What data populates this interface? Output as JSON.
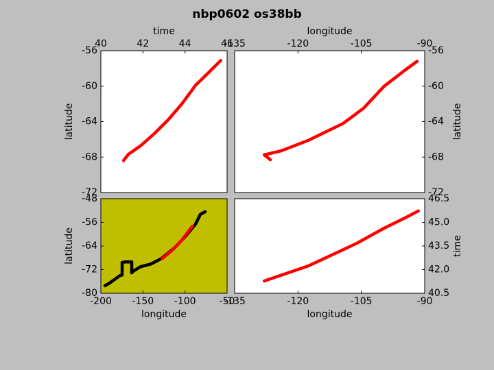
{
  "title": "nbp0602 os38bb",
  "chart_data": [
    {
      "type": "line",
      "xlabel": "time",
      "ylabel": "latitude",
      "x_axis": "top",
      "y_axis": "left",
      "background": "#ffffff",
      "xlim": [
        40,
        46
      ],
      "xticks": [
        40,
        42,
        44,
        46
      ],
      "ylim": [
        -72,
        -56
      ],
      "yticks": [
        -56,
        -60,
        -64,
        -68,
        -72
      ],
      "series": [
        {
          "color": "#ff0000",
          "x": [
            41.08,
            41.3,
            41.9,
            42.54,
            43.2,
            43.85,
            44.5,
            45.15,
            45.7
          ],
          "values": [
            -68.4,
            -67.7,
            -66.7,
            -65.35,
            -63.8,
            -62.0,
            -59.9,
            -58.4,
            -57.1
          ]
        }
      ]
    },
    {
      "type": "line",
      "xlabel": "longitude",
      "ylabel": "latitude",
      "x_axis": "top",
      "y_axis": "right",
      "background": "#ffffff",
      "xlim": [
        -135,
        -90
      ],
      "xticks": [
        -135,
        -120,
        -105,
        -90
      ],
      "ylim": [
        -72,
        -56
      ],
      "yticks": [
        -56,
        -60,
        -64,
        -68,
        -72
      ],
      "series": [
        {
          "color": "#ff0000",
          "x": [
            -126.55,
            -128.0,
            -124.0,
            -117.5,
            -109.3,
            -104.5,
            -99.6,
            -94.7,
            -91.8
          ],
          "values": [
            -68.3,
            -67.75,
            -67.3,
            -66.1,
            -64.2,
            -62.5,
            -60.0,
            -58.2,
            -57.2
          ]
        }
      ]
    },
    {
      "type": "line",
      "xlabel": "longitude",
      "ylabel": "latitude",
      "x_axis": "bottom",
      "y_axis": "left",
      "background": "#bfbf00",
      "xlim": [
        -200,
        -50
      ],
      "xticks": [
        -200,
        -150,
        -100,
        -50
      ],
      "ylim": [
        -80,
        -48
      ],
      "yticks": [
        -80,
        -72,
        -64,
        -56,
        -48
      ],
      "series": [
        {
          "color": "#000000",
          "x": [
            -195.1,
            -189.4,
            -177.2,
            -174.7,
            -174.7,
            -171.5,
            -163.3,
            -163.3,
            -160.9,
            -152.7,
            -140.5,
            -128.3,
            -112.0,
            -99.7,
            -87.5,
            -81.8,
            -76.1
          ],
          "values": [
            -77.45,
            -76.5,
            -74.0,
            -73.8,
            -69.6,
            -69.4,
            -69.4,
            -73.1,
            -72.4,
            -71.0,
            -70.1,
            -68.3,
            -64.5,
            -60.8,
            -56.6,
            -53.3,
            -52.4
          ]
        },
        {
          "color": "#ff0000",
          "x": [
            -127.4,
            -116.0,
            -103.8,
            -91.6
          ],
          "values": [
            -68.3,
            -65.7,
            -62.0,
            -57.4
          ]
        }
      ]
    },
    {
      "type": "line",
      "xlabel": "longitude",
      "ylabel": "time",
      "x_axis": "bottom",
      "y_axis": "right",
      "background": "#ffffff",
      "xlim": [
        -135,
        -90
      ],
      "xticks": [
        -135,
        -120,
        -105,
        -90
      ],
      "ylim": [
        40.5,
        46.5
      ],
      "yticks": [
        40.5,
        {
          "value": 42,
          "label": "42.0"
        },
        43.5,
        {
          "value": 45,
          "label": "45.0"
        },
        46.5
      ],
      "series": [
        {
          "color": "#ff0000",
          "x": [
            -128.0,
            -125.6,
            -117.5,
            -106.1,
            -99.6,
            -94.7,
            -91.5
          ],
          "values": [
            41.28,
            41.5,
            42.24,
            43.67,
            44.63,
            45.28,
            45.72
          ]
        }
      ]
    }
  ]
}
